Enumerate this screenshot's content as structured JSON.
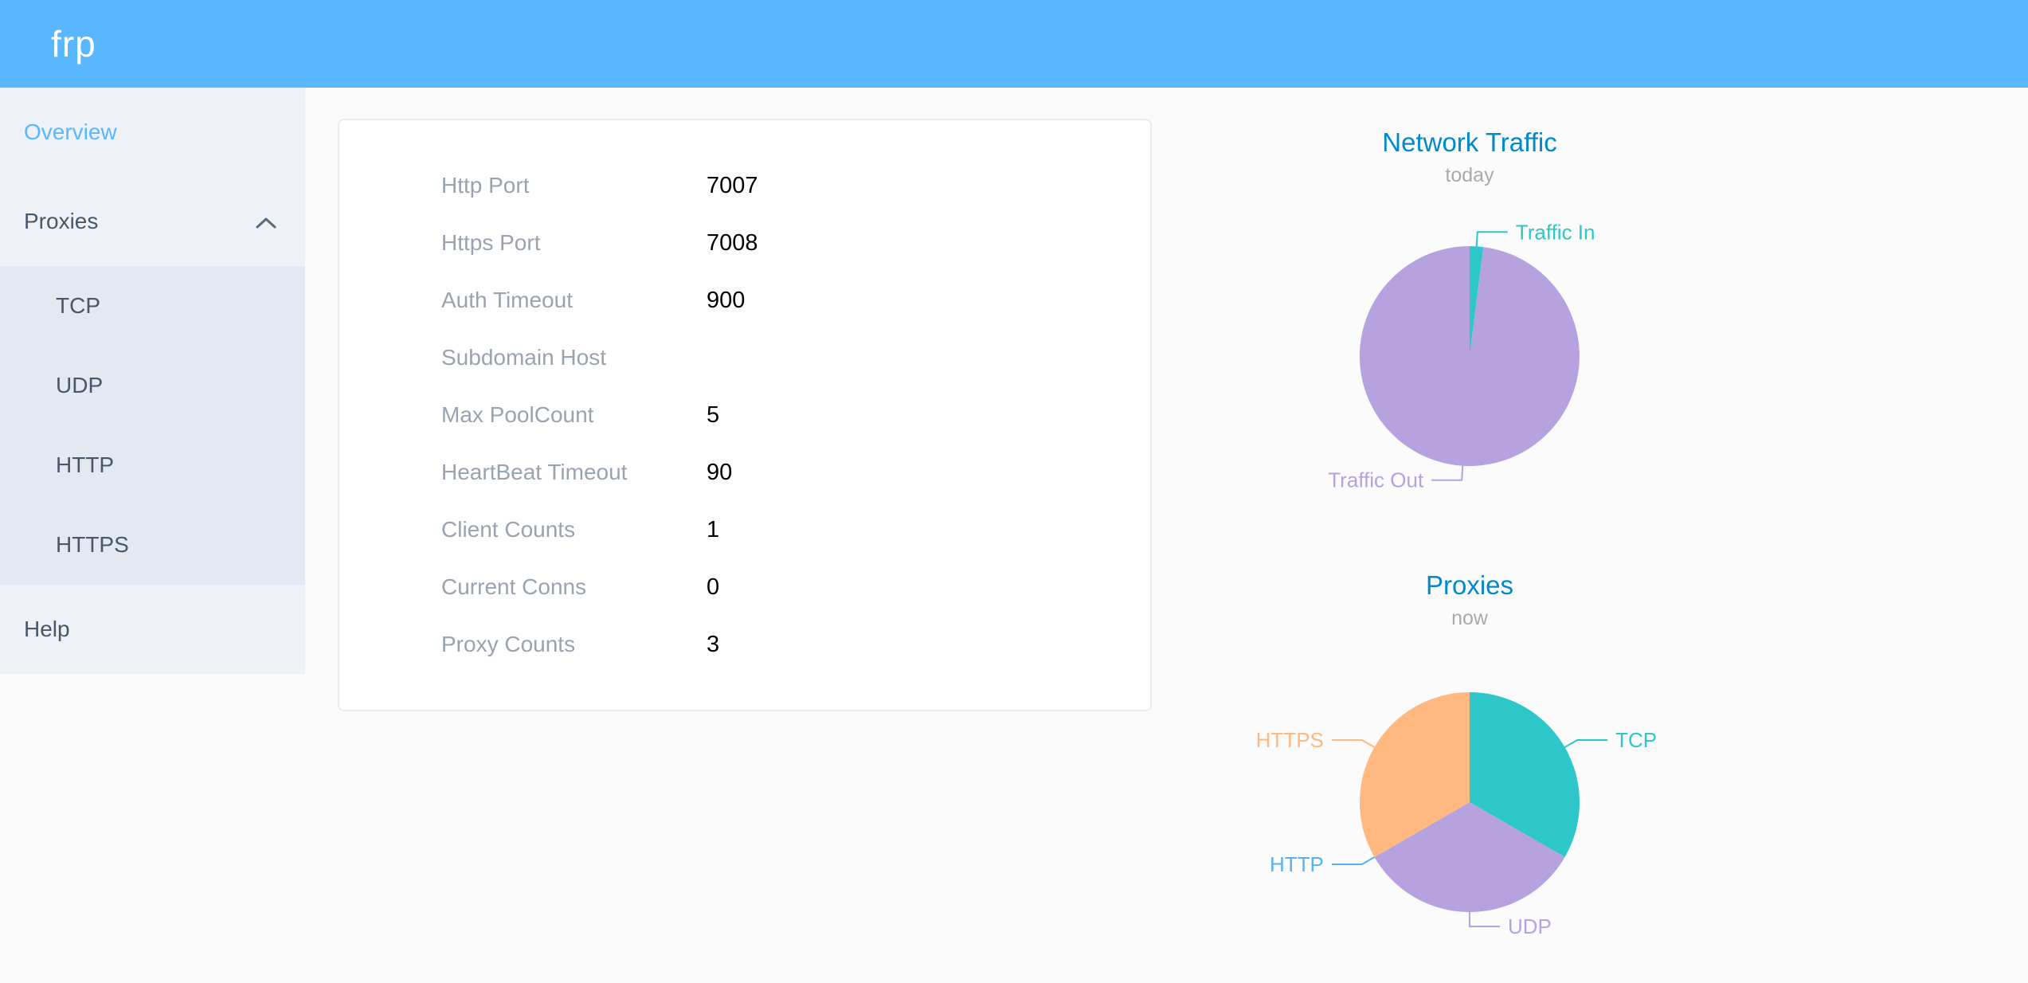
{
  "header": {
    "logo": "frp"
  },
  "sidebar": {
    "items": [
      {
        "label": "Overview",
        "active": true
      },
      {
        "label": "Proxies",
        "expanded": true,
        "children": [
          "TCP",
          "UDP",
          "HTTP",
          "HTTPS"
        ]
      },
      {
        "label": "Help"
      }
    ]
  },
  "overview": {
    "rows": [
      {
        "label": "Http Port",
        "value": "7007"
      },
      {
        "label": "Https Port",
        "value": "7008"
      },
      {
        "label": "Auth Timeout",
        "value": "900"
      },
      {
        "label": "Subdomain Host",
        "value": ""
      },
      {
        "label": "Max PoolCount",
        "value": "5"
      },
      {
        "label": "HeartBeat Timeout",
        "value": "90"
      },
      {
        "label": "Client Counts",
        "value": "1"
      },
      {
        "label": "Current Conns",
        "value": "0"
      },
      {
        "label": "Proxy Counts",
        "value": "3"
      }
    ]
  },
  "chart_data": [
    {
      "type": "pie",
      "title": "Network Traffic",
      "subtitle": "today",
      "label_position": "outside",
      "slices": [
        {
          "name": "Traffic In",
          "value": 2,
          "color": "#2EC7C9"
        },
        {
          "name": "Traffic Out",
          "value": 98,
          "color": "#B6A2DE"
        }
      ]
    },
    {
      "type": "pie",
      "title": "Proxies",
      "subtitle": "now",
      "label_position": "outside",
      "slices": [
        {
          "name": "TCP",
          "value": 1,
          "color": "#2EC7C9"
        },
        {
          "name": "UDP",
          "value": 1,
          "color": "#B6A2DE"
        },
        {
          "name": "HTTP",
          "value": 0,
          "color": "#5AB1EF"
        },
        {
          "name": "HTTPS",
          "value": 1,
          "color": "#FFB980"
        }
      ]
    }
  ],
  "colors": {
    "header_bg": "#58B7FF",
    "sidebar_bg": "#EEF1F6",
    "submenu_bg": "#E4E8F1",
    "menu_text": "#48576A",
    "active_menu_text": "#58B7FF",
    "chart_title": "#008ACD",
    "subtitle_text": "#AAAAAA",
    "field_label": "#99A3AF",
    "field_value": "#000000"
  }
}
